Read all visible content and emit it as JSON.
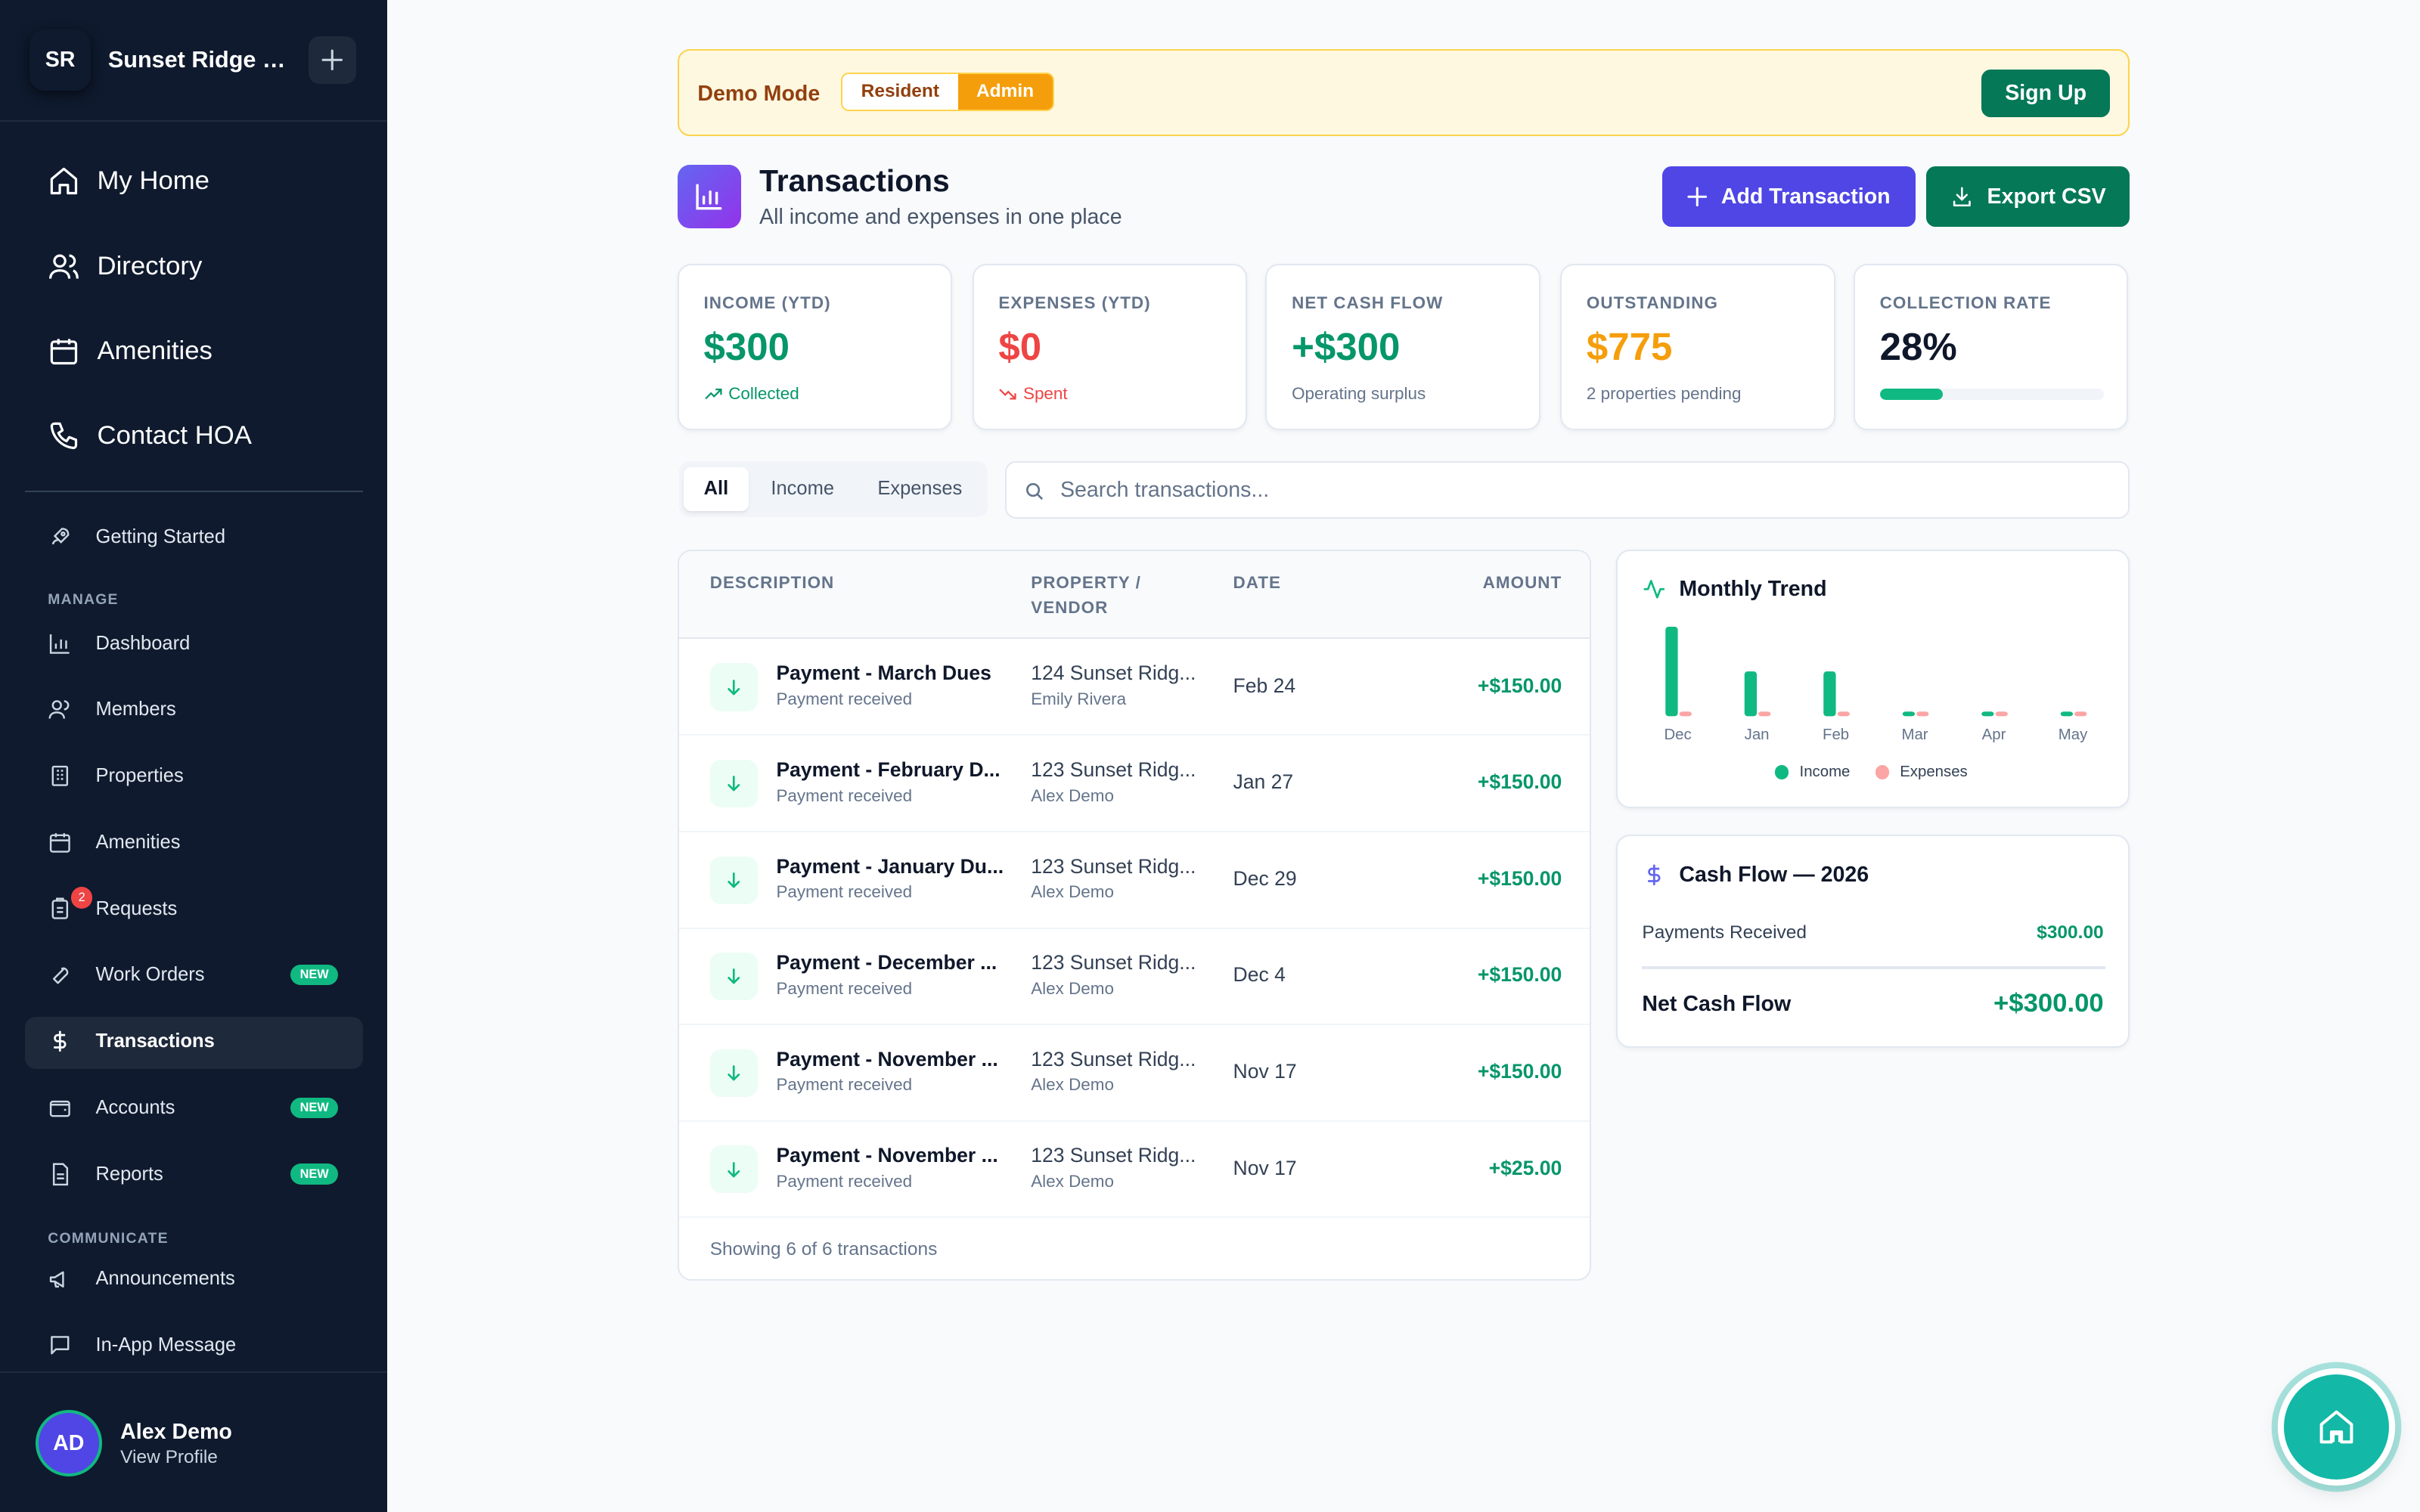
{
  "sidebar": {
    "logo_initials": "SR",
    "org_name": "Sunset Ridge H...",
    "main_nav": [
      "My Home",
      "Directory",
      "Amenities",
      "Contact HOA"
    ],
    "getting_started": "Getting Started",
    "section_manage": "MANAGE",
    "manage_items": [
      "Dashboard",
      "Members",
      "Properties",
      "Amenities",
      "Requests",
      "Work Orders",
      "Transactions",
      "Accounts",
      "Reports"
    ],
    "requests_badge": "2",
    "new_badge": "NEW",
    "section_communicate": "COMMUNICATE",
    "communicate_items": [
      "Announcements",
      "In-App Message"
    ],
    "user": {
      "initials": "AD",
      "name": "Alex Demo",
      "link": "View Profile"
    }
  },
  "demo_bar": {
    "label": "Demo Mode",
    "options": [
      "Resident",
      "Admin"
    ],
    "selected": "Admin",
    "signup": "Sign Up"
  },
  "header": {
    "title": "Transactions",
    "subtitle": "All income and expenses in one place",
    "add_button": "Add Transaction",
    "export_button": "Export CSV"
  },
  "stats": [
    {
      "label": "INCOME (YTD)",
      "value": "$300",
      "sub": "Collected",
      "color": "#059669"
    },
    {
      "label": "EXPENSES (YTD)",
      "value": "$0",
      "sub": "Spent",
      "color": "#ef4444"
    },
    {
      "label": "NET CASH FLOW",
      "value": "+$300",
      "sub": "Operating surplus",
      "color": "#059669"
    },
    {
      "label": "OUTSTANDING",
      "value": "$775",
      "sub": "2 properties pending",
      "color": "#f59e0b"
    },
    {
      "label": "COLLECTION RATE",
      "value": "28%",
      "progress": 0.28,
      "color": "#0f172a"
    }
  ],
  "filters": {
    "tabs": [
      "All",
      "Income",
      "Expenses"
    ],
    "selected": "All"
  },
  "search": {
    "placeholder": "Search transactions...",
    "value": ""
  },
  "table": {
    "columns": {
      "description": "DESCRIPTION",
      "property_line1": "PROPERTY /",
      "property_line2": "VENDOR",
      "date": "DATE",
      "amount": "AMOUNT"
    },
    "rows": [
      {
        "description": "Payment - March Dues",
        "sub": "Payment received",
        "property": "124 Sunset Ridg...",
        "party": "Emily Rivera",
        "date": "Feb 24",
        "amount": "+$150.00"
      },
      {
        "description": "Payment - February D...",
        "sub": "Payment received",
        "property": "123 Sunset Ridg...",
        "party": "Alex Demo",
        "date": "Jan 27",
        "amount": "+$150.00"
      },
      {
        "description": "Payment - January Du...",
        "sub": "Payment received",
        "property": "123 Sunset Ridg...",
        "party": "Alex Demo",
        "date": "Dec 29",
        "amount": "+$150.00"
      },
      {
        "description": "Payment - December ...",
        "sub": "Payment received",
        "property": "123 Sunset Ridg...",
        "party": "Alex Demo",
        "date": "Dec 4",
        "amount": "+$150.00"
      },
      {
        "description": "Payment - November ...",
        "sub": "Payment received",
        "property": "123 Sunset Ridg...",
        "party": "Alex Demo",
        "date": "Nov 17",
        "amount": "+$150.00"
      },
      {
        "description": "Payment - November ...",
        "sub": "Payment received",
        "property": "123 Sunset Ridg...",
        "party": "Alex Demo",
        "date": "Nov 17",
        "amount": "+$25.00"
      }
    ],
    "footer": "Showing 6 of 6 transactions"
  },
  "trend": {
    "title": "Monthly Trend"
  },
  "chart_data": {
    "type": "bar",
    "title": "Monthly Trend",
    "categories": [
      "Dec",
      "Jan",
      "Feb",
      "Mar",
      "Apr",
      "May"
    ],
    "series": [
      {
        "name": "Income",
        "values": [
          150,
          75,
          75,
          0,
          0,
          0
        ],
        "color": "#10b981"
      },
      {
        "name": "Expenses",
        "values": [
          0,
          0,
          0,
          0,
          0,
          0
        ],
        "color": "#fca5a5"
      }
    ]
  },
  "cashflow": {
    "title": "Cash Flow — 2026",
    "received_label": "Payments Received",
    "received_value": "$300.00",
    "net_label": "Net Cash Flow",
    "net_value": "+$300.00"
  }
}
